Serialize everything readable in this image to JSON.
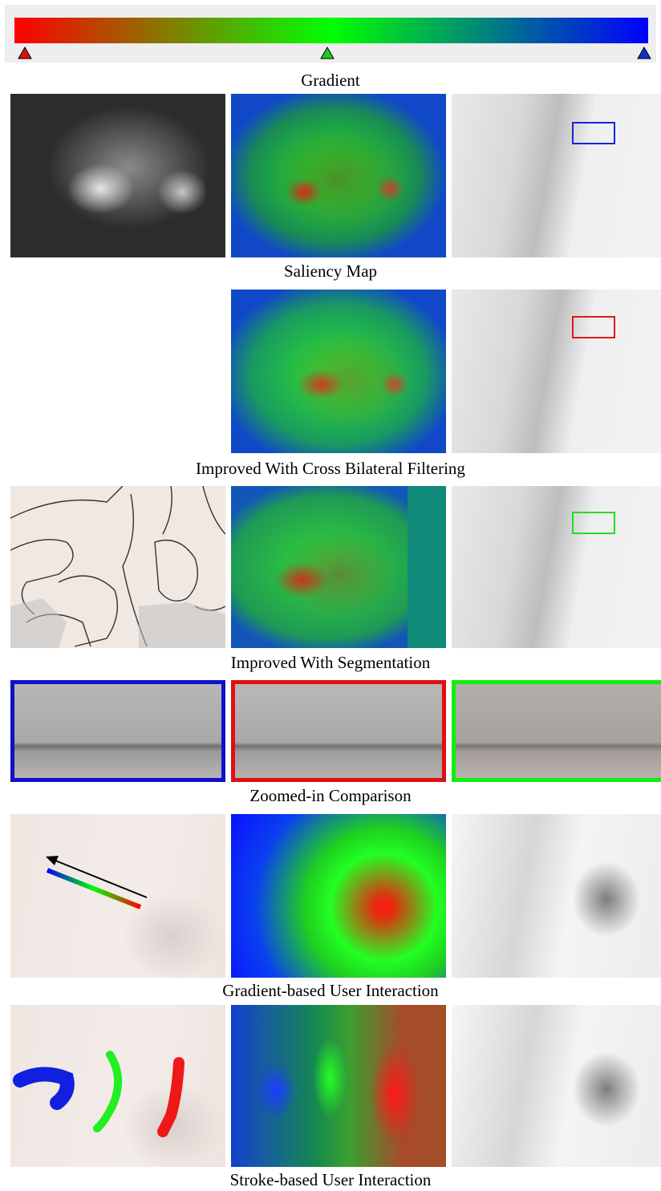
{
  "gradient": {
    "colors": [
      "#ff0000",
      "#00ff00",
      "#0000ff"
    ],
    "stops": [
      {
        "color": "#ff0000",
        "name": "red-stop"
      },
      {
        "color": "#22cc22",
        "name": "green-stop"
      },
      {
        "color": "#1030d0",
        "name": "blue-stop"
      }
    ],
    "caption": "Gradient"
  },
  "rows": {
    "saliency": {
      "caption": "Saliency Map",
      "box_color": "#1a24d0"
    },
    "bilateral": {
      "caption": "Improved With Cross Bilateral Filtering",
      "box_color": "#e01818"
    },
    "segmentation": {
      "caption": "Improved With Segmentation",
      "box_color": "#22dd22"
    },
    "zoomed": {
      "caption": "Zoomed-in Comparison",
      "borders": [
        "#1010c8",
        "#e01010",
        "#10ee10"
      ]
    },
    "gradient_interaction": {
      "caption": "Gradient-based User Interaction"
    },
    "stroke_interaction": {
      "caption": "Stroke-based User Interaction",
      "stroke_colors": [
        "#1020e0",
        "#22ee22",
        "#ee1818"
      ]
    }
  }
}
